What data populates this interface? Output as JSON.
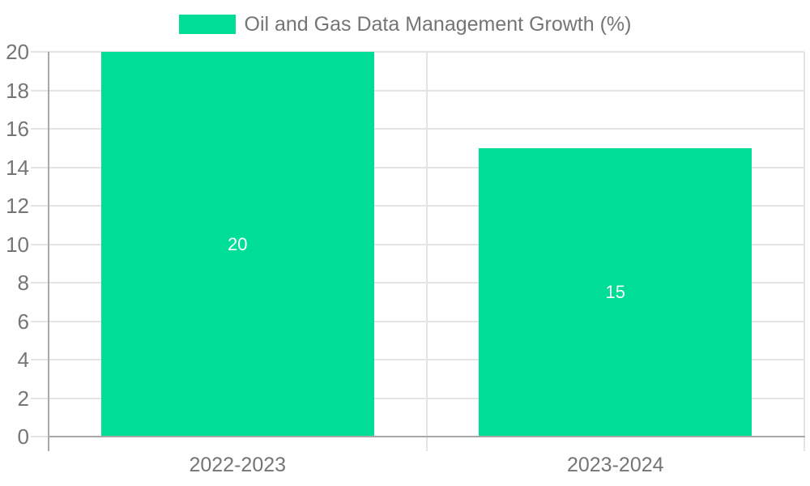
{
  "legend": {
    "label": "Oil and Gas Data Management Growth (%)"
  },
  "chart_data": {
    "type": "bar",
    "title": "Oil and Gas Data Management Growth (%)",
    "categories": [
      "2022-2023",
      "2023-2024"
    ],
    "series": [
      {
        "name": "Oil and Gas Data Management Growth (%)",
        "values": [
          20,
          15
        ]
      }
    ],
    "data_labels": [
      "20",
      "15"
    ],
    "xlabel": "",
    "ylabel": "",
    "ylim": [
      0,
      20
    ],
    "ytick_interval": 2,
    "ytick_labels": [
      "0",
      "2",
      "4",
      "6",
      "8",
      "10",
      "12",
      "14",
      "16",
      "18",
      "20"
    ],
    "grid": {
      "horizontal": true,
      "category_separators": true
    },
    "legend_position": "top",
    "colors": {
      "bar": "#00DE96",
      "axis_text": "#757575",
      "bar_label": "#ffffff",
      "gridline": "#e4e4e4",
      "axis_line": "#a8a8a8",
      "background": "#ffffff"
    }
  }
}
